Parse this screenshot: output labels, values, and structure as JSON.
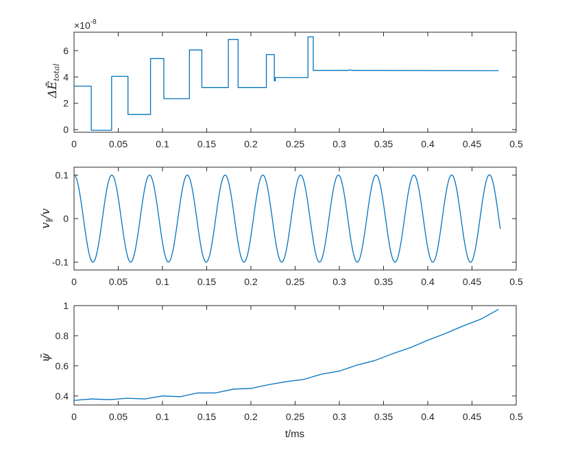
{
  "chart_data": [
    {
      "type": "line",
      "ylabel": "ΔĒ_total",
      "y_exponent_label": "×10",
      "y_exponent": "-8",
      "xlim": [
        0,
        0.5
      ],
      "ylim": [
        -0.2,
        7.4
      ],
      "xticks": [
        "0",
        "0.05",
        "0.1",
        "0.15",
        "0.2",
        "0.25",
        "0.3",
        "0.35",
        "0.4",
        "0.45",
        "0.5"
      ],
      "yticks": [
        "0",
        "2",
        "4",
        "6"
      ],
      "color": "#0072BD",
      "series": [
        {
          "x": [
            0,
            0.0195,
            0.0195,
            0.0425,
            0.0425,
            0.061,
            0.061,
            0.0865,
            0.0865,
            0.1015,
            0.1015,
            0.1305,
            0.1305,
            0.1445,
            0.1445,
            0.1745,
            0.1745,
            0.1855,
            0.1855,
            0.2175,
            0.2175,
            0.2265,
            0.2265,
            0.2275,
            0.2275,
            0.2645,
            0.2645,
            0.2705,
            0.2705,
            0.31,
            0.312,
            0.314,
            0.48
          ],
          "y": [
            3.3,
            3.3,
            -0.05,
            -0.05,
            4.05,
            4.05,
            1.15,
            1.15,
            5.4,
            5.4,
            2.35,
            2.35,
            6.05,
            6.05,
            3.2,
            3.2,
            6.85,
            6.85,
            3.2,
            3.2,
            5.7,
            5.7,
            3.7,
            3.7,
            3.95,
            3.95,
            7.05,
            7.05,
            4.5,
            4.5,
            4.55,
            4.5,
            4.48
          ]
        }
      ]
    },
    {
      "type": "line",
      "ylabel": "v_∥/v",
      "xlim": [
        0,
        0.5
      ],
      "ylim": [
        -0.118,
        0.118
      ],
      "xticks": [
        "0",
        "0.05",
        "0.1",
        "0.15",
        "0.2",
        "0.25",
        "0.3",
        "0.35",
        "0.4",
        "0.45",
        "0.5"
      ],
      "yticks": [
        "0.1",
        "0",
        "-0.1"
      ],
      "color": "#0072BD",
      "series": [
        {
          "period": 0.0427,
          "amplitude": 0.1,
          "x_end": 0.482,
          "description_points": {
            "maxima_x": [
              0,
              0.0427,
              0.0854,
              0.1281,
              0.1708,
              0.2135,
              0.2562,
              0.2989,
              0.3416,
              0.3843,
              0.427,
              0.4697
            ],
            "minima_x": [
              0.021,
              0.0638,
              0.1065,
              0.1492,
              0.1919,
              0.2346,
              0.2773,
              0.32,
              0.3627,
              0.4054,
              0.4485
            ]
          }
        }
      ]
    },
    {
      "type": "line",
      "ylabel": "ψ̄",
      "xlabel": "t/ms",
      "xlim": [
        0,
        0.5
      ],
      "ylim": [
        0.34,
        1.0
      ],
      "xticks": [
        "0",
        "0.05",
        "0.1",
        "0.15",
        "0.2",
        "0.25",
        "0.3",
        "0.35",
        "0.4",
        "0.45",
        "0.5"
      ],
      "yticks": [
        "1",
        "0.8",
        "0.6",
        "0.4"
      ],
      "color": "#0072BD",
      "series": [
        {
          "x": [
            0,
            0.02,
            0.04,
            0.06,
            0.08,
            0.1,
            0.12,
            0.14,
            0.16,
            0.18,
            0.2,
            0.22,
            0.24,
            0.26,
            0.28,
            0.3,
            0.32,
            0.34,
            0.36,
            0.38,
            0.4,
            0.42,
            0.44,
            0.46,
            0.48
          ],
          "y": [
            0.37,
            0.38,
            0.375,
            0.385,
            0.38,
            0.4,
            0.395,
            0.42,
            0.42,
            0.445,
            0.45,
            0.475,
            0.495,
            0.51,
            0.545,
            0.565,
            0.605,
            0.635,
            0.68,
            0.72,
            0.77,
            0.815,
            0.865,
            0.91,
            0.975
          ]
        }
      ]
    }
  ]
}
